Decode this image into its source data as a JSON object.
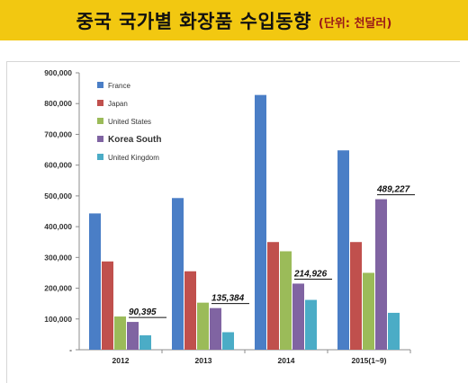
{
  "header": {
    "title": "중국 국가별 화장품 수입동향",
    "unit": "(단위: 천달러)"
  },
  "chart_data": {
    "type": "bar",
    "categories": [
      "2012",
      "2013",
      "2014",
      "2015(1~9)"
    ],
    "series": [
      {
        "name": "France",
        "color": "#4a7ec6",
        "values": [
          443000,
          493000,
          828000,
          648000
        ]
      },
      {
        "name": "Japan",
        "color": "#c0504d",
        "values": [
          287000,
          255000,
          350000,
          350000
        ]
      },
      {
        "name": "United States",
        "color": "#9bbb59",
        "values": [
          108000,
          153000,
          320000,
          250000
        ]
      },
      {
        "name": "Korea South",
        "color": "#8064a2",
        "values": [
          90395,
          135384,
          214926,
          489227
        ]
      },
      {
        "name": "United Kingdom",
        "color": "#4bacc6",
        "values": [
          47000,
          57000,
          162000,
          120000
        ]
      }
    ],
    "yticks": [
      "-",
      "100,000",
      "200,000",
      "300,000",
      "400,000",
      "500,000",
      "600,000",
      "700,000",
      "800,000",
      "900,000"
    ],
    "ylim": [
      0,
      900000
    ],
    "annotations": [
      "90,395",
      "135,384",
      "214,926",
      "489,227"
    ],
    "legend_position": "top-left",
    "grid": false
  }
}
